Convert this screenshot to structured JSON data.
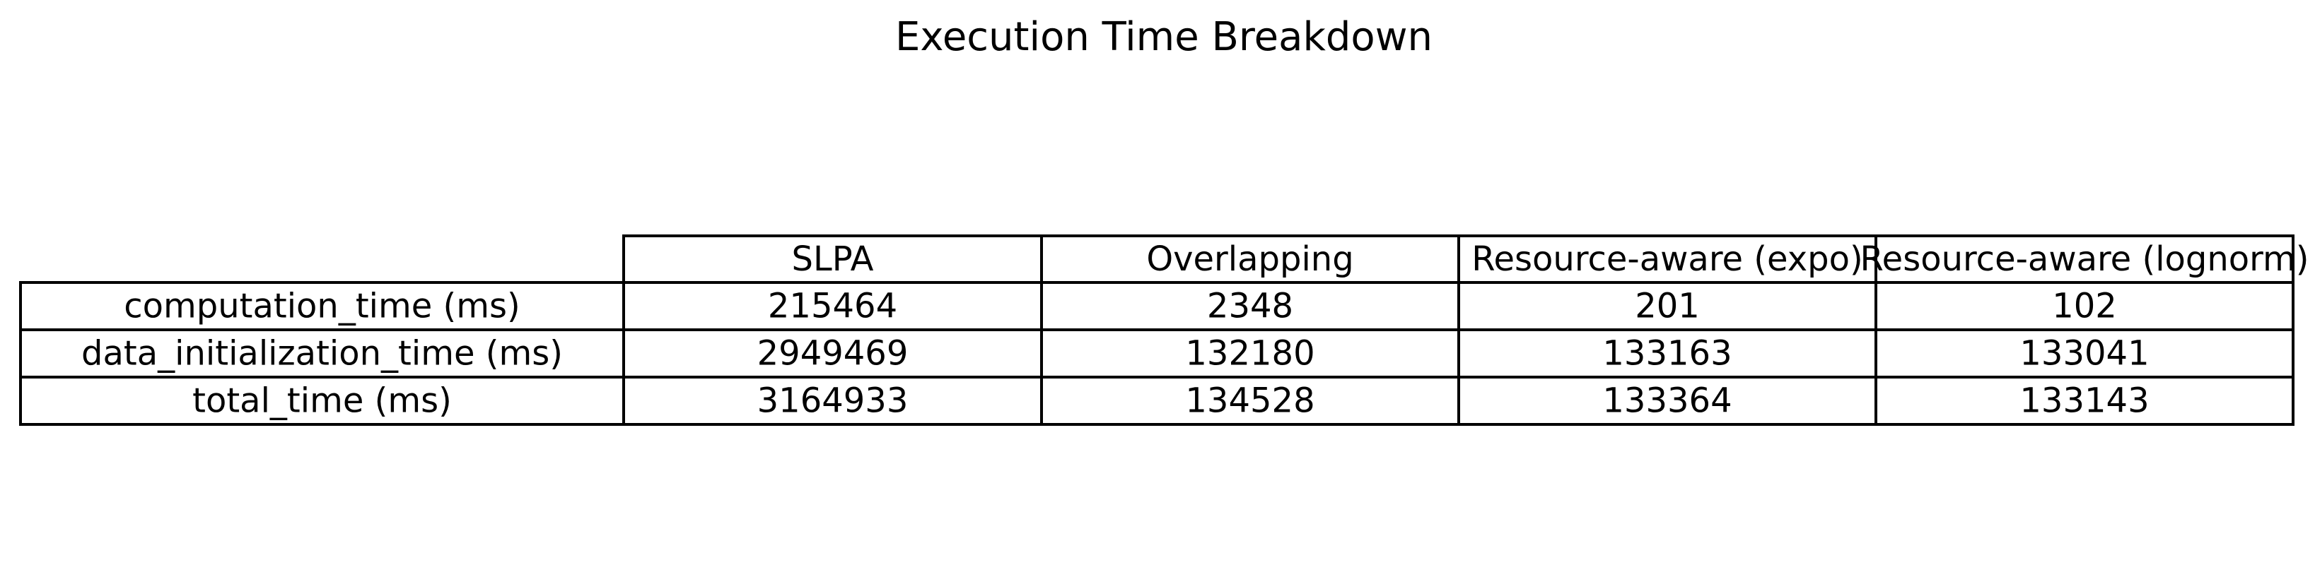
{
  "chart_data": {
    "type": "table",
    "title": "Execution Time Breakdown",
    "columns": [
      "SLPA",
      "Overlapping",
      "Resource-aware (expo)",
      "Resource-aware (lognorm)"
    ],
    "rows": [
      {
        "label": "computation_time (ms)",
        "values": [
          215464,
          2348,
          201,
          102
        ]
      },
      {
        "label": "data_initialization_time (ms)",
        "values": [
          2949469,
          132180,
          133163,
          133041
        ]
      },
      {
        "label": "total_time (ms)",
        "values": [
          3164933,
          134528,
          133364,
          133143
        ]
      }
    ]
  }
}
